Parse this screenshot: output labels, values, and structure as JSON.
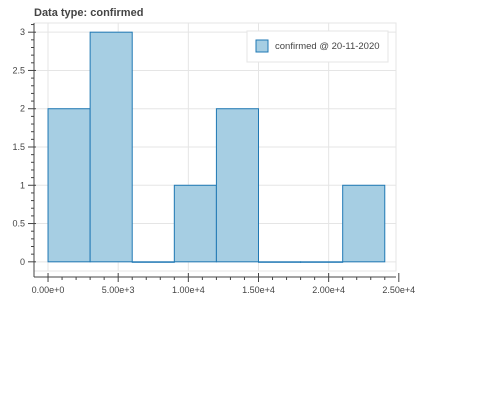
{
  "chart_data": {
    "type": "bar",
    "title": "Data type: confirmed",
    "xlabel": "",
    "ylabel": "",
    "xlim": [
      -1000,
      24800
    ],
    "ylim": [
      -0.12,
      3.12
    ],
    "grid": true,
    "legend_position": "top-right",
    "series": [
      {
        "name": "confirmed @ 20-11-2020",
        "bins": [
          {
            "left": 0,
            "right": 3000,
            "value": 2
          },
          {
            "left": 3000,
            "right": 6000,
            "value": 3
          },
          {
            "left": 6000,
            "right": 9000,
            "value": 0
          },
          {
            "left": 9000,
            "right": 12000,
            "value": 1
          },
          {
            "left": 12000,
            "right": 15000,
            "value": 2
          },
          {
            "left": 15000,
            "right": 18000,
            "value": 0
          },
          {
            "left": 18000,
            "right": 21000,
            "value": 0
          },
          {
            "left": 21000,
            "right": 24000,
            "value": 1
          }
        ]
      }
    ],
    "x_ticks": [
      {
        "value": 0,
        "label": "0.00e+0"
      },
      {
        "value": 5000,
        "label": "5.00e+3"
      },
      {
        "value": 10000,
        "label": "1.00e+4"
      },
      {
        "value": 15000,
        "label": "1.50e+4"
      },
      {
        "value": 20000,
        "label": "2.00e+4"
      },
      {
        "value": 25000,
        "label": "2.50e+4"
      }
    ],
    "y_ticks": [
      {
        "value": 0,
        "label": "0"
      },
      {
        "value": 0.5,
        "label": "0.5"
      },
      {
        "value": 1,
        "label": "1"
      },
      {
        "value": 1.5,
        "label": "1.5"
      },
      {
        "value": 2,
        "label": "2"
      },
      {
        "value": 2.5,
        "label": "2.5"
      },
      {
        "value": 3,
        "label": "3"
      }
    ]
  },
  "colors": {
    "bar_fill": "#a6cee3",
    "bar_stroke": "#1f78b4",
    "grid": "#e5e5e5",
    "axis": "#444444",
    "frame": "#e5e5e5"
  }
}
